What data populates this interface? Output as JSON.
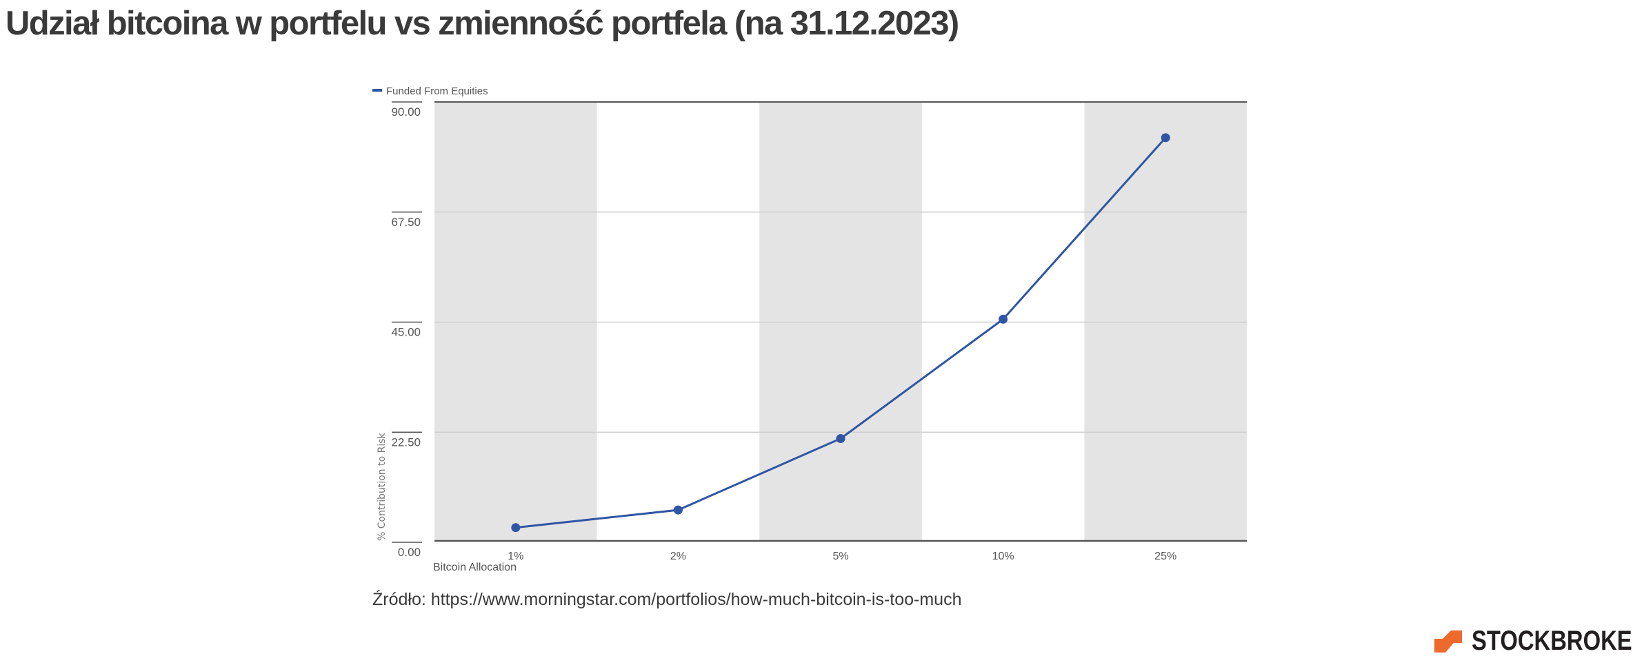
{
  "title": "Udział bitcoina w portfelu vs zmienność portfela (na 31.12.2023)",
  "source": "Źródło: https://www.morningstar.com/portfolios/how-much-bitcoin-is-too-much",
  "logo": {
    "text": "STOCKBROKER",
    "accent_color": "#ee6a2c"
  },
  "chart_data": {
    "type": "line",
    "categories": [
      "1%",
      "2%",
      "5%",
      "10%",
      "25%"
    ],
    "series": [
      {
        "name": "Funded From Equities",
        "values": [
          3.0,
          6.6,
          21.2,
          45.6,
          82.7
        ],
        "color": "#2f55a4"
      }
    ],
    "xlabel": "Bitcoin Allocation",
    "ylabel": "% Contribution to Risk",
    "ylim": [
      0,
      90
    ],
    "yticks": [
      "0.00",
      "22.50",
      "45.00",
      "67.50",
      "90.00"
    ],
    "grid": true,
    "legend": "top-left",
    "band_color": "#e4e4e4"
  }
}
